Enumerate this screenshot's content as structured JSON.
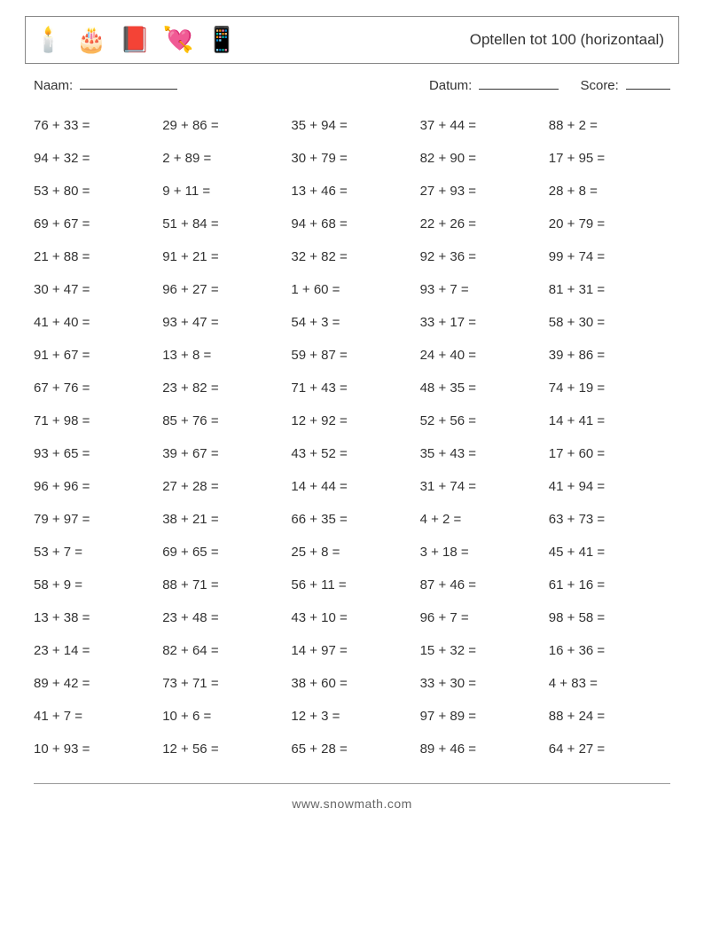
{
  "header": {
    "title": "Optellen tot 100 (horizontaal)",
    "icons": [
      "🕯️",
      "🎂",
      "📕",
      "💘",
      "📱"
    ]
  },
  "labels": {
    "name": "Naam:",
    "date": "Datum:",
    "score": "Score:"
  },
  "columns": 5,
  "problems": [
    [
      "76 + 33 =",
      "29 + 86 =",
      "35 + 94 =",
      "37 + 44 =",
      "88 + 2 ="
    ],
    [
      "94 + 32 =",
      "2 + 89 =",
      "30 + 79 =",
      "82 + 90 =",
      "17 + 95 ="
    ],
    [
      "53 + 80 =",
      "9 + 11 =",
      "13 + 46 =",
      "27 + 93 =",
      "28 + 8 ="
    ],
    [
      "69 + 67 =",
      "51 + 84 =",
      "94 + 68 =",
      "22 + 26 =",
      "20 + 79 ="
    ],
    [
      "21 + 88 =",
      "91 + 21 =",
      "32 + 82 =",
      "92 + 36 =",
      "99 + 74 ="
    ],
    [
      "30 + 47 =",
      "96 + 27 =",
      "1 + 60 =",
      "93 + 7 =",
      "81 + 31 ="
    ],
    [
      "41 + 40 =",
      "93 + 47 =",
      "54 + 3 =",
      "33 + 17 =",
      "58 + 30 ="
    ],
    [
      "91 + 67 =",
      "13 + 8 =",
      "59 + 87 =",
      "24 + 40 =",
      "39 + 86 ="
    ],
    [
      "67 + 76 =",
      "23 + 82 =",
      "71 + 43 =",
      "48 + 35 =",
      "74 + 19 ="
    ],
    [
      "71 + 98 =",
      "85 + 76 =",
      "12 + 92 =",
      "52 + 56 =",
      "14 + 41 ="
    ],
    [
      "93 + 65 =",
      "39 + 67 =",
      "43 + 52 =",
      "35 + 43 =",
      "17 + 60 ="
    ],
    [
      "96 + 96 =",
      "27 + 28 =",
      "14 + 44 =",
      "31 + 74 =",
      "41 + 94 ="
    ],
    [
      "79 + 97 =",
      "38 + 21 =",
      "66 + 35 =",
      "4 + 2 =",
      "63 + 73 ="
    ],
    [
      "53 + 7 =",
      "69 + 65 =",
      "25 + 8 =",
      "3 + 18 =",
      "45 + 41 ="
    ],
    [
      "58 + 9 =",
      "88 + 71 =",
      "56 + 11 =",
      "87 + 46 =",
      "61 + 16 ="
    ],
    [
      "13 + 38 =",
      "23 + 48 =",
      "43 + 10 =",
      "96 + 7 =",
      "98 + 58 ="
    ],
    [
      "23 + 14 =",
      "82 + 64 =",
      "14 + 97 =",
      "15 + 32 =",
      "16 + 36 ="
    ],
    [
      "89 + 42 =",
      "73 + 71 =",
      "38 + 60 =",
      "33 + 30 =",
      "4 + 83 ="
    ],
    [
      "41 + 7 =",
      "10 + 6 =",
      "12 + 3 =",
      "97 + 89 =",
      "88 + 24 ="
    ],
    [
      "10 + 93 =",
      "12 + 56 =",
      "65 + 28 =",
      "89 + 46 =",
      "64 + 27 ="
    ]
  ],
  "footer": "www.snowmath.com"
}
